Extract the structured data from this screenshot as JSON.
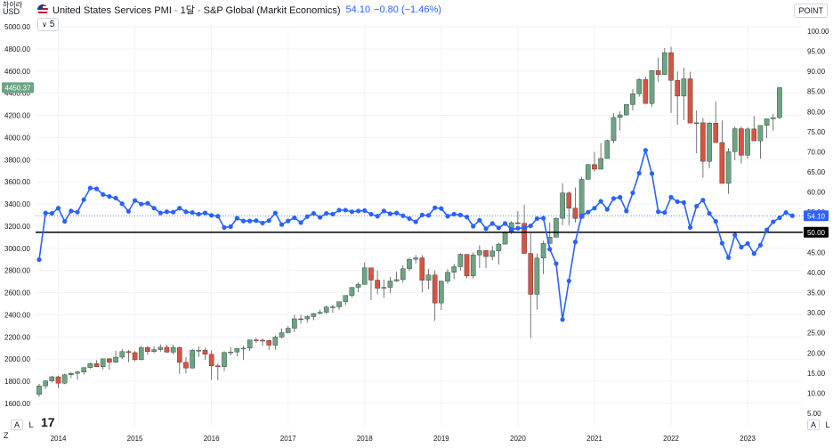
{
  "header": {
    "title": "United States Services PMI · 1달 · S&P Global (Markit Economics)",
    "value": "54.10",
    "change": "−0.80 (−1.46%)",
    "indicator_count": "5"
  },
  "left_axis": {
    "currency_label": "USD",
    "top_label": "하이라",
    "ticks": [
      "5000.00",
      "4800.00",
      "4600.00",
      "4400.00",
      "4200.00",
      "4000.00",
      "3800.00",
      "3600.00",
      "3400.00",
      "3200.00",
      "3000.00",
      "2800.00",
      "2600.00",
      "2400.00",
      "2200.00",
      "2000.00",
      "1800.00",
      "1600.00"
    ],
    "last_price_label": "4450.37"
  },
  "right_axis": {
    "mode_button": "POINT",
    "ticks": [
      "100.00",
      "95.00",
      "90.00",
      "85.00",
      "80.00",
      "75.00",
      "70.00",
      "65.00",
      "60.00",
      "55.00",
      "50.00",
      "45.00",
      "40.00",
      "35.00",
      "30.00",
      "25.00",
      "20.00",
      "15.00",
      "10.00",
      "5.00"
    ],
    "last_value_label": "54.10",
    "reference_label": "50.00"
  },
  "x_axis": {
    "years": [
      "2014",
      "2015",
      "2016",
      "2017",
      "2018",
      "2019",
      "2020",
      "2021",
      "2022",
      "2023"
    ]
  },
  "bottom_controls": {
    "left_a": "A",
    "left_l": "L",
    "right_a": "A",
    "right_l": "L",
    "z": "Z"
  },
  "colors": {
    "up": "#6ba583",
    "down": "#d75442",
    "pmi": "#2962ff",
    "grid": "#f0f3fa",
    "reference": "#000000"
  },
  "chart_data": {
    "type": "candlestick+line",
    "title": "United States Services PMI · 1달 · S&P Global (Markit Economics)",
    "price_axis": {
      "unit": "USD",
      "ylim": [
        1560,
        5100
      ]
    },
    "pmi_axis": {
      "unit": "POINT",
      "ylim": [
        4,
        102
      ]
    },
    "reference_line": 50,
    "x_start": "2013-10",
    "x_end": "2023-06",
    "price_candles": [
      [
        1681,
        1777,
        1660,
        1758
      ],
      [
        1758,
        1810,
        1730,
        1804
      ],
      [
        1804,
        1848,
        1790,
        1841
      ],
      [
        1841,
        1850,
        1737,
        1783
      ],
      [
        1783,
        1868,
        1775,
        1859
      ],
      [
        1859,
        1883,
        1830,
        1872
      ],
      [
        1872,
        1897,
        1814,
        1884
      ],
      [
        1884,
        1925,
        1860,
        1924
      ],
      [
        1924,
        1968,
        1915,
        1960
      ],
      [
        1960,
        1991,
        1930,
        1931
      ],
      [
        1931,
        2005,
        1905,
        2003
      ],
      [
        2003,
        2011,
        1904,
        1972
      ],
      [
        1972,
        2075,
        1965,
        2018
      ],
      [
        2018,
        2093,
        2002,
        2068
      ],
      [
        2068,
        2082,
        1972,
        2059
      ],
      [
        2059,
        2072,
        1980,
        1995
      ],
      [
        1995,
        2120,
        1990,
        2105
      ],
      [
        2105,
        2119,
        2040,
        2068
      ],
      [
        2068,
        2117,
        2055,
        2086
      ],
      [
        2086,
        2134,
        2067,
        2107
      ],
      [
        2107,
        2130,
        2056,
        2063
      ],
      [
        2063,
        2132,
        2044,
        2104
      ],
      [
        2104,
        2113,
        1867,
        1972
      ],
      [
        1972,
        2020,
        1871,
        1920
      ],
      [
        1920,
        2094,
        1915,
        2079
      ],
      [
        2079,
        2116,
        2019,
        2080
      ],
      [
        2080,
        2104,
        1993,
        2044
      ],
      [
        2044,
        2081,
        1812,
        1940
      ],
      [
        1940,
        1963,
        1810,
        1932
      ],
      [
        1932,
        2072,
        1891,
        2060
      ],
      [
        2060,
        2111,
        2033,
        2065
      ],
      [
        2065,
        2100,
        2025,
        2097
      ],
      [
        2097,
        2120,
        1992,
        2099
      ],
      [
        2099,
        2175,
        2074,
        2174
      ],
      [
        2174,
        2193,
        2147,
        2171
      ],
      [
        2171,
        2188,
        2119,
        2168
      ],
      [
        2168,
        2175,
        2083,
        2126
      ],
      [
        2126,
        2214,
        2084,
        2199
      ],
      [
        2199,
        2278,
        2187,
        2239
      ],
      [
        2239,
        2300,
        2233,
        2279
      ],
      [
        2279,
        2401,
        2245,
        2364
      ],
      [
        2364,
        2401,
        2322,
        2363
      ],
      [
        2363,
        2398,
        2329,
        2384
      ],
      [
        2384,
        2415,
        2352,
        2412
      ],
      [
        2412,
        2446,
        2405,
        2423
      ],
      [
        2423,
        2484,
        2407,
        2470
      ],
      [
        2470,
        2490,
        2417,
        2472
      ],
      [
        2472,
        2520,
        2446,
        2519
      ],
      [
        2519,
        2576,
        2488,
        2575
      ],
      [
        2575,
        2648,
        2557,
        2648
      ],
      [
        2648,
        2694,
        2605,
        2674
      ],
      [
        2674,
        2873,
        2673,
        2824
      ],
      [
        2824,
        2789,
        2532,
        2713
      ],
      [
        2713,
        2801,
        2585,
        2640
      ],
      [
        2640,
        2718,
        2553,
        2648
      ],
      [
        2648,
        2742,
        2594,
        2705
      ],
      [
        2705,
        2791,
        2698,
        2718
      ],
      [
        2718,
        2848,
        2691,
        2816
      ],
      [
        2816,
        2916,
        2795,
        2901
      ],
      [
        2901,
        2940,
        2864,
        2914
      ],
      [
        2914,
        2939,
        2603,
        2712
      ],
      [
        2712,
        2815,
        2631,
        2760
      ],
      [
        2760,
        2800,
        2346,
        2507
      ],
      [
        2507,
        2708,
        2443,
        2704
      ],
      [
        2704,
        2813,
        2681,
        2784
      ],
      [
        2784,
        2860,
        2722,
        2834
      ],
      [
        2834,
        2954,
        2800,
        2946
      ],
      [
        2946,
        2891,
        2729,
        2752
      ],
      [
        2752,
        2964,
        2728,
        2941
      ],
      [
        2941,
        3028,
        2822,
        2980
      ],
      [
        2980,
        2983,
        2822,
        2926
      ],
      [
        2926,
        3021,
        2891,
        2977
      ],
      [
        2977,
        3050,
        2855,
        3038
      ],
      [
        3038,
        3154,
        3050,
        3141
      ],
      [
        3141,
        3247,
        3127,
        3231
      ],
      [
        3231,
        3337,
        3214,
        3226
      ],
      [
        3226,
        3393,
        3182,
        2954
      ],
      [
        2954,
        3136,
        2192,
        2585
      ],
      [
        2585,
        2954,
        2447,
        2912
      ],
      [
        2912,
        3068,
        2766,
        3044
      ],
      [
        3044,
        3233,
        3050,
        3100
      ],
      [
        3100,
        3279,
        3130,
        3271
      ],
      [
        3271,
        3588,
        3209,
        3500
      ],
      [
        3500,
        3514,
        3209,
        3363
      ],
      [
        3363,
        3549,
        3233,
        3270
      ],
      [
        3270,
        3645,
        3279,
        3622
      ],
      [
        3622,
        3760,
        3634,
        3756
      ],
      [
        3756,
        3871,
        3694,
        3714
      ],
      [
        3714,
        3950,
        3723,
        3811
      ],
      [
        3811,
        3981,
        3879,
        3973
      ],
      [
        3973,
        4218,
        3950,
        4181
      ],
      [
        4181,
        4238,
        4064,
        4204
      ],
      [
        4204,
        4255,
        4197,
        4298
      ],
      [
        4298,
        4438,
        4243,
        4395
      ],
      [
        4395,
        4537,
        4368,
        4523
      ],
      [
        4523,
        4550,
        4346,
        4307
      ],
      [
        4307,
        4608,
        4279,
        4605
      ],
      [
        4605,
        4721,
        4504,
        4567
      ],
      [
        4567,
        4808,
        4570,
        4766
      ],
      [
        4766,
        4819,
        4222,
        4516
      ],
      [
        4516,
        4596,
        4114,
        4374
      ],
      [
        4374,
        4631,
        4157,
        4530
      ],
      [
        4530,
        4593,
        4137,
        4131
      ],
      [
        4131,
        4245,
        3858,
        4133
      ],
      [
        4133,
        4177,
        3636,
        3785
      ],
      [
        3785,
        4140,
        3723,
        4130
      ],
      [
        4130,
        4324,
        3954,
        3955
      ],
      [
        3955,
        4155,
        3585,
        3586
      ],
      [
        3586,
        3905,
        3492,
        3872
      ],
      [
        3872,
        4100,
        3794,
        4080
      ],
      [
        4080,
        4100,
        3764,
        3840
      ],
      [
        3840,
        4094,
        3808,
        4077
      ],
      [
        4077,
        4195,
        3976,
        3970
      ],
      [
        3970,
        4079,
        3808,
        4109
      ],
      [
        4109,
        4169,
        3995,
        4169
      ],
      [
        4169,
        4215,
        4062,
        4180
      ],
      [
        4180,
        4450,
        4166,
        4450
      ]
    ],
    "pmi": [
      43.2,
      54.8,
      54.7,
      56.0,
      52.7,
      55.3,
      55.0,
      58.1,
      61.0,
      60.8,
      59.4,
      58.9,
      58.5,
      57.1,
      55.2,
      57.9,
      57.0,
      57.2,
      56.0,
      54.8,
      55.1,
      55.0,
      56.0,
      55.1,
      54.9,
      54.5,
      54.8,
      54.2,
      54.0,
      51.2,
      51.4,
      53.5,
      52.8,
      52.8,
      52.9,
      52.3,
      52.9,
      54.8,
      51.9,
      52.8,
      53.6,
      52.4,
      53.9,
      54.7,
      53.7,
      54.7,
      54.5,
      55.5,
      55.5,
      55.1,
      55.3,
      55.4,
      54.5,
      54.0,
      55.3,
      54.6,
      54.8,
      54.1,
      53.4,
      52.6,
      54.3,
      54.2,
      56.1,
      55.9,
      54.0,
      54.5,
      54.3,
      53.8,
      51.5,
      53.0,
      50.9,
      52.2,
      51.1,
      52.2,
      50.7,
      51.0,
      51.1,
      51.6,
      53.4,
      53.5,
      45.8,
      42.2,
      28.3,
      37.9,
      47.6,
      54.1,
      55.0,
      56.0,
      57.7,
      55.7,
      58.4,
      58.7,
      55.3,
      59.8,
      64.7,
      70.4,
      64.6,
      55.1,
      54.9,
      58.7,
      57.6,
      57.4,
      51.2,
      56.5,
      58.0,
      54.7,
      52.7,
      47.3,
      43.7,
      49.3,
      46.3,
      47.2,
      44.7,
      46.8,
      50.6,
      52.6,
      53.6,
      54.9,
      54.1
    ]
  }
}
